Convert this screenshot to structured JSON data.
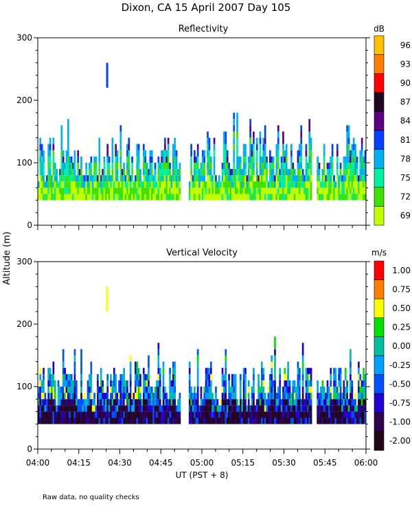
{
  "figure": {
    "title": "Dixon, CA 15 April 2007  Day 105",
    "ylabel": "Altitude (m)",
    "xlabel": "UT  (PST + 8)",
    "note": "Raw data, no quality checks",
    "x_ticks": [
      "04:00",
      "04:15",
      "04:30",
      "04:45",
      "05:00",
      "05:15",
      "05:30",
      "05:45",
      "06:00"
    ],
    "y_ticks": [
      "0",
      "100",
      "200",
      "300"
    ]
  },
  "chart_data": [
    {
      "type": "heatmap",
      "title": "Reflectivity",
      "xlabel": "UT  (PST + 8)",
      "ylabel": "Altitude (m)",
      "x_range": [
        "04:00",
        "06:00"
      ],
      "ylim": [
        0,
        300
      ],
      "colorbar": {
        "unit": "dB",
        "ticks": [
          96,
          93,
          90,
          87,
          84,
          81,
          78,
          75,
          72,
          69
        ],
        "tick_labels": [
          "96",
          "93",
          "90",
          "87",
          "84",
          "81",
          "78",
          "75",
          "72",
          "69"
        ],
        "colors": [
          "#ffc000",
          "#ff8000",
          "#ff0000",
          "#200820",
          "#5a0080",
          "#0040ff",
          "#00b0f0",
          "#00f0a0",
          "#40e000",
          "#c0ff00"
        ]
      },
      "data_extent": {
        "min_altitude": 40,
        "typical_top": 120,
        "max_altitude": 260
      }
    },
    {
      "type": "heatmap",
      "title": "Vertical Velocity",
      "xlabel": "UT  (PST + 8)",
      "ylabel": "Altitude (m)",
      "x_range": [
        "04:00",
        "06:00"
      ],
      "ylim": [
        0,
        300
      ],
      "colorbar": {
        "unit": "m/s",
        "ticks": [
          1.0,
          0.75,
          0.5,
          0.25,
          0.0,
          -0.25,
          -0.5,
          -0.75,
          -1.0,
          -2.0
        ],
        "tick_labels": [
          "1.00",
          "0.75",
          "0.50",
          "0.25",
          "0.00",
          "-0.25",
          "-0.50",
          "-0.75",
          "-1.00",
          "-2.00"
        ],
        "colors": [
          "#ff0000",
          "#ff8000",
          "#ffff00",
          "#00e000",
          "#00c0a0",
          "#00a0ff",
          "#0050ff",
          "#2000d0",
          "#300050",
          "#200818"
        ]
      },
      "data_extent": {
        "min_altitude": 40,
        "typical_top": 120,
        "max_altitude": 260
      }
    }
  ]
}
